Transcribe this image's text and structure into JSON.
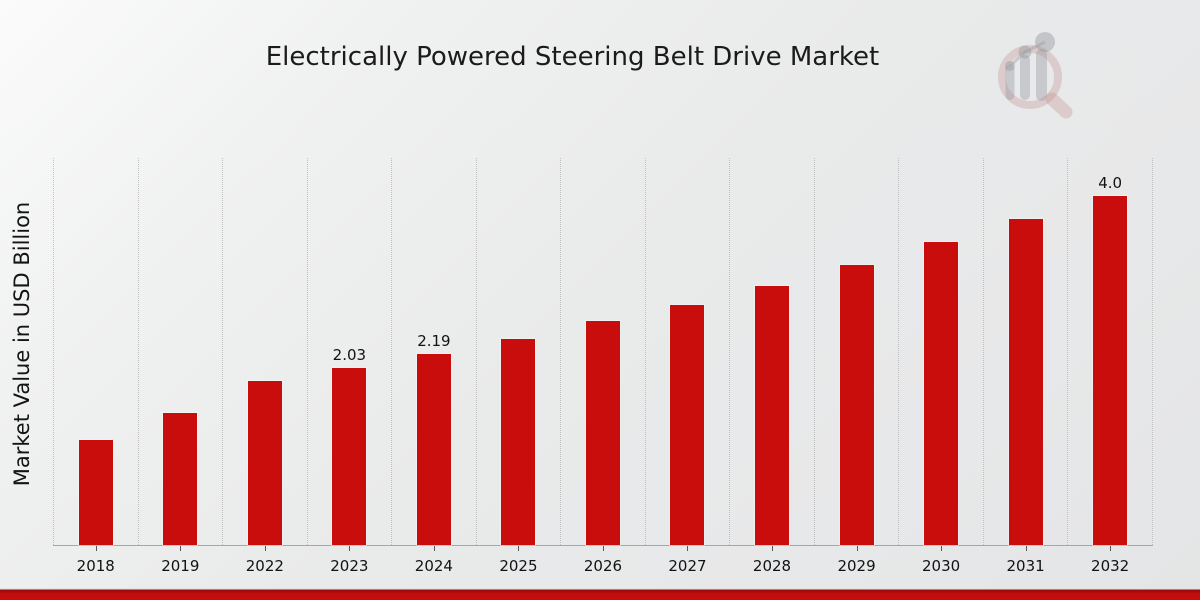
{
  "page": {
    "title": "Electrically Powered Steering Belt Drive Market"
  },
  "colors": {
    "bar_red": "#c90d0d",
    "banner_red": "#c60d0d",
    "banner_dark_red": "#9b0a0a",
    "background_gray": "#e8e9ea",
    "gridline_gray": "#bfc0c4",
    "text_dark": "#1b1b1b"
  },
  "watermark": {
    "name": "magnifier-bar-chart-logo"
  },
  "chart_data": {
    "type": "bar",
    "title": "Electrically Powered Steering Belt Drive Market",
    "xlabel": "",
    "ylabel": "Market Value in USD Billion",
    "categories": [
      "2018",
      "2019",
      "2022",
      "2023",
      "2024",
      "2025",
      "2026",
      "2027",
      "2028",
      "2029",
      "2030",
      "2031",
      "2032"
    ],
    "values": [
      1.2,
      1.51,
      1.88,
      2.03,
      2.19,
      2.36,
      2.56,
      2.75,
      2.96,
      3.21,
      3.47,
      3.73,
      4.0
    ],
    "data_labels": [
      "",
      "",
      "",
      "2.03",
      "2.19",
      "",
      "",
      "",
      "",
      "",
      "",
      "",
      "4.0"
    ],
    "ylim": [
      0,
      4.43
    ],
    "yticks": "none",
    "grid": "vertical dotted gridlines at column boundaries",
    "legend": "none",
    "bar_color": "#c90d0d"
  }
}
